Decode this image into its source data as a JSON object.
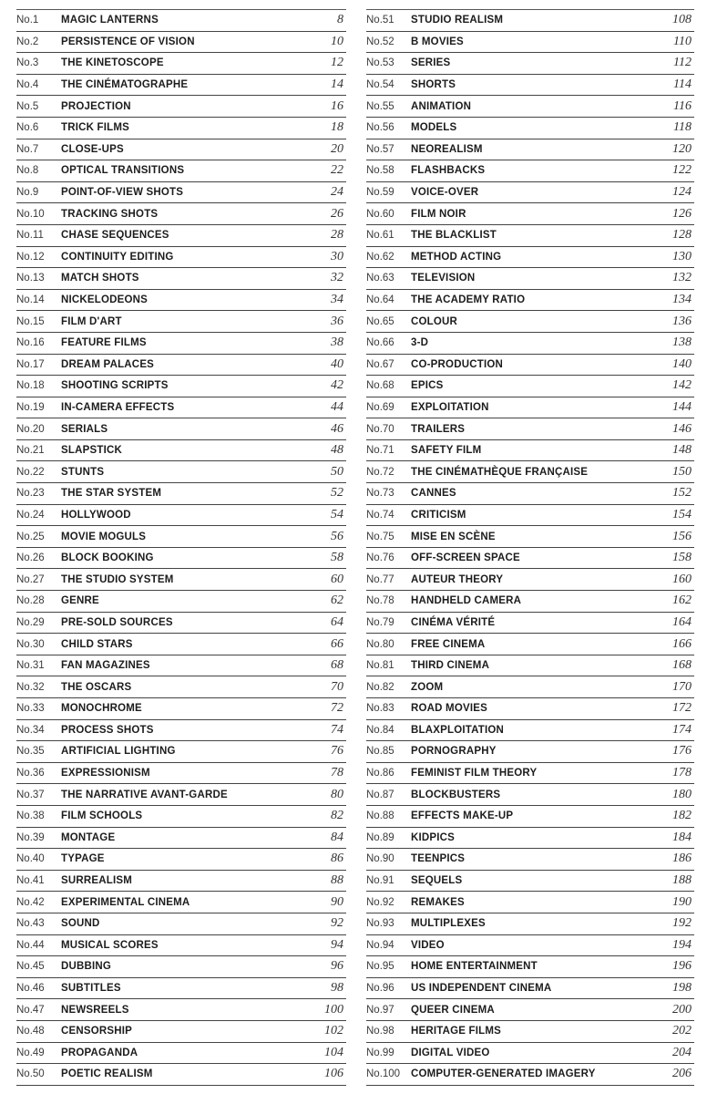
{
  "entries": [
    {
      "no": "No.1",
      "title": "MAGIC LANTERNS",
      "page": "8"
    },
    {
      "no": "No.2",
      "title": "PERSISTENCE OF VISION",
      "page": "10"
    },
    {
      "no": "No.3",
      "title": "THE KINETOSCOPE",
      "page": "12"
    },
    {
      "no": "No.4",
      "title": "THE CINÉMATOGRAPHE",
      "page": "14"
    },
    {
      "no": "No.5",
      "title": "PROJECTION",
      "page": "16"
    },
    {
      "no": "No.6",
      "title": "TRICK FILMS",
      "page": "18"
    },
    {
      "no": "No.7",
      "title": "CLOSE-UPS",
      "page": "20"
    },
    {
      "no": "No.8",
      "title": "OPTICAL TRANSITIONS",
      "page": "22"
    },
    {
      "no": "No.9",
      "title": "POINT-OF-VIEW SHOTS",
      "page": "24"
    },
    {
      "no": "No.10",
      "title": "TRACKING SHOTS",
      "page": "26"
    },
    {
      "no": "No.11",
      "title": "CHASE SEQUENCES",
      "page": "28"
    },
    {
      "no": "No.12",
      "title": "CONTINUITY EDITING",
      "page": "30"
    },
    {
      "no": "No.13",
      "title": "MATCH SHOTS",
      "page": "32"
    },
    {
      "no": "No.14",
      "title": "NICKELODEONS",
      "page": "34"
    },
    {
      "no": "No.15",
      "title": "FILM D'ART",
      "page": "36"
    },
    {
      "no": "No.16",
      "title": "FEATURE FILMS",
      "page": "38"
    },
    {
      "no": "No.17",
      "title": "DREAM PALACES",
      "page": "40"
    },
    {
      "no": "No.18",
      "title": "SHOOTING SCRIPTS",
      "page": "42"
    },
    {
      "no": "No.19",
      "title": "IN-CAMERA EFFECTS",
      "page": "44"
    },
    {
      "no": "No.20",
      "title": "SERIALS",
      "page": "46"
    },
    {
      "no": "No.21",
      "title": "SLAPSTICK",
      "page": "48"
    },
    {
      "no": "No.22",
      "title": "STUNTS",
      "page": "50"
    },
    {
      "no": "No.23",
      "title": "THE STAR SYSTEM",
      "page": "52"
    },
    {
      "no": "No.24",
      "title": "HOLLYWOOD",
      "page": "54"
    },
    {
      "no": "No.25",
      "title": "MOVIE MOGULS",
      "page": "56"
    },
    {
      "no": "No.26",
      "title": "BLOCK BOOKING",
      "page": "58"
    },
    {
      "no": "No.27",
      "title": "THE STUDIO SYSTEM",
      "page": "60"
    },
    {
      "no": "No.28",
      "title": "GENRE",
      "page": "62"
    },
    {
      "no": "No.29",
      "title": "PRE-SOLD SOURCES",
      "page": "64"
    },
    {
      "no": "No.30",
      "title": "CHILD STARS",
      "page": "66"
    },
    {
      "no": "No.31",
      "title": "FAN MAGAZINES",
      "page": "68"
    },
    {
      "no": "No.32",
      "title": "THE OSCARS",
      "page": "70"
    },
    {
      "no": "No.33",
      "title": "MONOCHROME",
      "page": "72"
    },
    {
      "no": "No.34",
      "title": "PROCESS SHOTS",
      "page": "74"
    },
    {
      "no": "No.35",
      "title": "ARTIFICIAL LIGHTING",
      "page": "76"
    },
    {
      "no": "No.36",
      "title": "EXPRESSIONISM",
      "page": "78"
    },
    {
      "no": "No.37",
      "title": "THE NARRATIVE AVANT-GARDE",
      "page": "80"
    },
    {
      "no": "No.38",
      "title": "FILM SCHOOLS",
      "page": "82"
    },
    {
      "no": "No.39",
      "title": "MONTAGE",
      "page": "84"
    },
    {
      "no": "No.40",
      "title": "TYPAGE",
      "page": "86"
    },
    {
      "no": "No.41",
      "title": "SURREALISM",
      "page": "88"
    },
    {
      "no": "No.42",
      "title": "EXPERIMENTAL CINEMA",
      "page": "90"
    },
    {
      "no": "No.43",
      "title": "SOUND",
      "page": "92"
    },
    {
      "no": "No.44",
      "title": "MUSICAL SCORES",
      "page": "94"
    },
    {
      "no": "No.45",
      "title": "DUBBING",
      "page": "96"
    },
    {
      "no": "No.46",
      "title": "SUBTITLES",
      "page": "98"
    },
    {
      "no": "No.47",
      "title": "NEWSREELS",
      "page": "100"
    },
    {
      "no": "No.48",
      "title": "CENSORSHIP",
      "page": "102"
    },
    {
      "no": "No.49",
      "title": "PROPAGANDA",
      "page": "104"
    },
    {
      "no": "No.50",
      "title": "POETIC REALISM",
      "page": "106"
    },
    {
      "no": "No.51",
      "title": "STUDIO REALISM",
      "page": "108"
    },
    {
      "no": "No.52",
      "title": "B MOVIES",
      "page": "110"
    },
    {
      "no": "No.53",
      "title": "SERIES",
      "page": "112"
    },
    {
      "no": "No.54",
      "title": "SHORTS",
      "page": "114"
    },
    {
      "no": "No.55",
      "title": "ANIMATION",
      "page": "116"
    },
    {
      "no": "No.56",
      "title": "MODELS",
      "page": "118"
    },
    {
      "no": "No.57",
      "title": "NEOREALISM",
      "page": "120"
    },
    {
      "no": "No.58",
      "title": "FLASHBACKS",
      "page": "122"
    },
    {
      "no": "No.59",
      "title": "VOICE-OVER",
      "page": "124"
    },
    {
      "no": "No.60",
      "title": "FILM NOIR",
      "page": "126"
    },
    {
      "no": "No.61",
      "title": "THE BLACKLIST",
      "page": "128"
    },
    {
      "no": "No.62",
      "title": "METHOD ACTING",
      "page": "130"
    },
    {
      "no": "No.63",
      "title": "TELEVISION",
      "page": "132"
    },
    {
      "no": "No.64",
      "title": "THE ACADEMY RATIO",
      "page": "134"
    },
    {
      "no": "No.65",
      "title": "COLOUR",
      "page": "136"
    },
    {
      "no": "No.66",
      "title": "3-D",
      "page": "138"
    },
    {
      "no": "No.67",
      "title": "CO-PRODUCTION",
      "page": "140"
    },
    {
      "no": "No.68",
      "title": "EPICS",
      "page": "142"
    },
    {
      "no": "No.69",
      "title": "EXPLOITATION",
      "page": "144"
    },
    {
      "no": "No.70",
      "title": "TRAILERS",
      "page": "146"
    },
    {
      "no": "No.71",
      "title": "SAFETY FILM",
      "page": "148"
    },
    {
      "no": "No.72",
      "title": "THE CINÉMATHÈQUE FRANÇAISE",
      "page": "150"
    },
    {
      "no": "No.73",
      "title": "CANNES",
      "page": "152"
    },
    {
      "no": "No.74",
      "title": "CRITICISM",
      "page": "154"
    },
    {
      "no": "No.75",
      "title": "MISE EN SCÈNE",
      "page": "156"
    },
    {
      "no": "No.76",
      "title": "OFF-SCREEN SPACE",
      "page": "158"
    },
    {
      "no": "No.77",
      "title": "AUTEUR THEORY",
      "page": "160"
    },
    {
      "no": "No.78",
      "title": "HANDHELD CAMERA",
      "page": "162"
    },
    {
      "no": "No.79",
      "title": "CINÉMA VÉRITÉ",
      "page": "164"
    },
    {
      "no": "No.80",
      "title": "FREE CINEMA",
      "page": "166"
    },
    {
      "no": "No.81",
      "title": "THIRD CINEMA",
      "page": "168"
    },
    {
      "no": "No.82",
      "title": "ZOOM",
      "page": "170"
    },
    {
      "no": "No.83",
      "title": "ROAD MOVIES",
      "page": "172"
    },
    {
      "no": "No.84",
      "title": "BLAXPLOITATION",
      "page": "174"
    },
    {
      "no": "No.85",
      "title": "PORNOGRAPHY",
      "page": "176"
    },
    {
      "no": "No.86",
      "title": "FEMINIST FILM THEORY",
      "page": "178"
    },
    {
      "no": "No.87",
      "title": "BLOCKBUSTERS",
      "page": "180"
    },
    {
      "no": "No.88",
      "title": "EFFECTS MAKE-UP",
      "page": "182"
    },
    {
      "no": "No.89",
      "title": "KIDPICS",
      "page": "184"
    },
    {
      "no": "No.90",
      "title": "TEENPICS",
      "page": "186"
    },
    {
      "no": "No.91",
      "title": "SEQUELS",
      "page": "188"
    },
    {
      "no": "No.92",
      "title": "REMAKES",
      "page": "190"
    },
    {
      "no": "No.93",
      "title": "MULTIPLEXES",
      "page": "192"
    },
    {
      "no": "No.94",
      "title": "VIDEO",
      "page": "194"
    },
    {
      "no": "No.95",
      "title": "HOME ENTERTAINMENT",
      "page": "196"
    },
    {
      "no": "No.96",
      "title": "US INDEPENDENT CINEMA",
      "page": "198"
    },
    {
      "no": "No.97",
      "title": "QUEER CINEMA",
      "page": "200"
    },
    {
      "no": "No.98",
      "title": "HERITAGE FILMS",
      "page": "202"
    },
    {
      "no": "No.99",
      "title": "DIGITAL VIDEO",
      "page": "204"
    },
    {
      "no": "No.100",
      "title": "COMPUTER-GENERATED IMAGERY",
      "page": "206"
    }
  ]
}
